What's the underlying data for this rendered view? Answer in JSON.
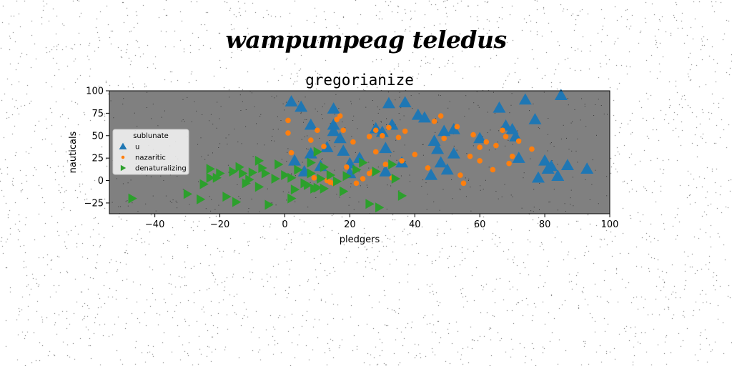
{
  "figure": {
    "suptitle": "wampumpeag teledus"
  },
  "chart_data": {
    "type": "scatter",
    "title": "gregorianize",
    "xlabel": "pledgers",
    "ylabel": "nauticals",
    "xlim": [
      -54,
      100
    ],
    "ylim": [
      -37,
      100
    ],
    "xticks": [
      -40,
      -20,
      0,
      20,
      40,
      60,
      80,
      100
    ],
    "yticks": [
      -25,
      0,
      25,
      50,
      75,
      100
    ],
    "axes_background": "#808080",
    "grid": false,
    "legend": {
      "title": "sublunate",
      "location": "center-left"
    },
    "series": [
      {
        "name": "u",
        "marker": "triangle-up",
        "color": "#1f77b4",
        "points": [
          [
            2,
            88
          ],
          [
            5,
            82
          ],
          [
            15,
            80
          ],
          [
            32,
            86
          ],
          [
            37,
            87
          ],
          [
            41,
            73
          ],
          [
            66,
            81
          ],
          [
            74,
            90
          ],
          [
            77,
            68
          ],
          [
            85,
            95
          ],
          [
            8,
            62
          ],
          [
            15,
            62
          ],
          [
            15,
            55
          ],
          [
            17,
            47
          ],
          [
            28,
            58
          ],
          [
            30,
            54
          ],
          [
            33,
            62
          ],
          [
            49,
            55
          ],
          [
            52,
            57
          ],
          [
            70,
            57
          ],
          [
            71,
            49
          ],
          [
            3,
            22
          ],
          [
            6,
            10
          ],
          [
            8,
            30
          ],
          [
            11,
            16
          ],
          [
            13,
            37
          ],
          [
            18,
            33
          ],
          [
            20,
            19
          ],
          [
            20,
            8
          ],
          [
            23,
            25
          ],
          [
            31,
            36
          ],
          [
            31,
            10
          ],
          [
            36,
            20
          ],
          [
            47,
            35
          ],
          [
            48,
            20
          ],
          [
            50,
            12
          ],
          [
            52,
            30
          ],
          [
            45,
            6
          ],
          [
            72,
            25
          ],
          [
            80,
            22
          ],
          [
            82,
            16
          ],
          [
            84,
            5
          ],
          [
            87,
            17
          ],
          [
            93,
            13
          ],
          [
            78,
            3
          ],
          [
            81,
            13
          ],
          [
            43,
            70
          ],
          [
            46,
            44
          ],
          [
            60,
            47
          ],
          [
            68,
            61
          ]
        ]
      },
      {
        "name": "nazaritic",
        "marker": "circle",
        "color": "#ff7f0e",
        "points": [
          [
            1,
            67
          ],
          [
            1,
            53
          ],
          [
            2,
            31
          ],
          [
            8,
            45
          ],
          [
            10,
            56
          ],
          [
            12,
            38
          ],
          [
            16,
            68
          ],
          [
            17,
            72
          ],
          [
            18,
            56
          ],
          [
            21,
            43
          ],
          [
            26,
            49
          ],
          [
            28,
            56
          ],
          [
            28,
            32
          ],
          [
            30,
            50
          ],
          [
            32,
            59
          ],
          [
            33,
            3
          ],
          [
            35,
            48
          ],
          [
            37,
            55
          ],
          [
            31,
            18
          ],
          [
            26,
            8
          ],
          [
            27,
            10
          ],
          [
            22,
            -3
          ],
          [
            14,
            -2
          ],
          [
            15,
            -3
          ],
          [
            9,
            3
          ],
          [
            13,
            0
          ],
          [
            36,
            22
          ],
          [
            48,
            72
          ],
          [
            54,
            6
          ],
          [
            55,
            -3
          ],
          [
            58,
            51
          ],
          [
            60,
            37
          ],
          [
            60,
            22
          ],
          [
            65,
            39
          ],
          [
            67,
            56
          ],
          [
            68,
            49
          ],
          [
            69,
            19
          ],
          [
            70,
            27
          ],
          [
            76,
            35
          ],
          [
            49,
            47
          ],
          [
            62,
            43
          ],
          [
            19,
            15
          ],
          [
            24,
            2
          ],
          [
            40,
            29
          ],
          [
            44,
            14
          ],
          [
            53,
            60
          ],
          [
            64,
            12
          ],
          [
            72,
            44
          ],
          [
            57,
            27
          ],
          [
            46,
            66
          ]
        ]
      },
      {
        "name": "denaturalizing",
        "marker": "triangle-right",
        "color": "#2ca02c",
        "points": [
          [
            -47,
            -20
          ],
          [
            -30,
            -15
          ],
          [
            -26,
            -21
          ],
          [
            -23,
            13
          ],
          [
            -23,
            3
          ],
          [
            -21,
            3
          ],
          [
            -18,
            -18
          ],
          [
            -14,
            15
          ],
          [
            -13,
            8
          ],
          [
            -11,
            1
          ],
          [
            -10,
            9
          ],
          [
            -8,
            22
          ],
          [
            -8,
            -7
          ],
          [
            -6,
            8
          ],
          [
            -5,
            -27
          ],
          [
            -3,
            2
          ],
          [
            2,
            3
          ],
          [
            2,
            -20
          ],
          [
            7,
            -5
          ],
          [
            8,
            8
          ],
          [
            9,
            -9
          ],
          [
            10,
            32
          ],
          [
            10,
            -8
          ],
          [
            12,
            15
          ],
          [
            12,
            -9
          ],
          [
            14,
            6
          ],
          [
            19,
            5
          ],
          [
            26,
            -26
          ],
          [
            28,
            10
          ],
          [
            29,
            -30
          ],
          [
            33,
            18
          ],
          [
            36,
            -17
          ],
          [
            4,
            12
          ],
          [
            -2,
            18
          ],
          [
            6,
            -3
          ],
          [
            16,
            -1
          ],
          [
            22,
            12
          ],
          [
            -16,
            10
          ],
          [
            -12,
            -3
          ],
          [
            0,
            6
          ],
          [
            8,
            20
          ],
          [
            -20,
            8
          ],
          [
            -25,
            -4
          ],
          [
            11,
            2
          ],
          [
            24,
            20
          ],
          [
            -15,
            -24
          ],
          [
            3,
            -10
          ],
          [
            -7,
            14
          ],
          [
            18,
            -12
          ],
          [
            34,
            2
          ]
        ]
      }
    ]
  }
}
